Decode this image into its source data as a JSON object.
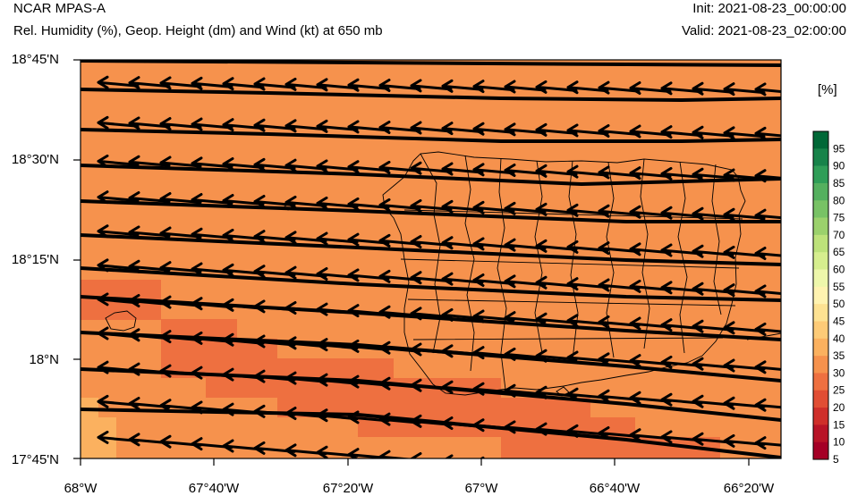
{
  "header": {
    "title": "NCAR MPAS-A",
    "subtitle": "Rel. Humidity (%), Geop. Height (dm) and Wind (kt) at 650 mb",
    "init": "Init: 2021-08-23_00:00:00",
    "valid": "Valid: 2021-08-23_02:00:00"
  },
  "axes": {
    "y_ticks": [
      "18°45'N",
      "18°30'N",
      "18°15'N",
      "18°N",
      "17°45'N"
    ],
    "x_ticks": [
      "68°W",
      "67°40'W",
      "67°20'W",
      "67°W",
      "66°40'W",
      "66°20'W"
    ]
  },
  "colorbar": {
    "units": "[%]",
    "labels": [
      "95",
      "90",
      "85",
      "80",
      "75",
      "70",
      "65",
      "60",
      "55",
      "50",
      "45",
      "40",
      "35",
      "30",
      "25",
      "20",
      "15",
      "10",
      "5"
    ],
    "colors": [
      "#006837",
      "#17834a",
      "#2f9e58",
      "#54b05f",
      "#78c265",
      "#9bd16c",
      "#bde27a",
      "#d6ee8e",
      "#eef7ab",
      "#fff3b0",
      "#fde292",
      "#fdcb77",
      "#fbb15f",
      "#f6924d",
      "#ee7040",
      "#e14e34",
      "#cf2f2a",
      "#b81427",
      "#a50026"
    ]
  },
  "map": {
    "background_rh_color": "#f6924d",
    "moist_patch_color": "#fbb15f",
    "dry_patch_color": "#ee7040"
  }
}
